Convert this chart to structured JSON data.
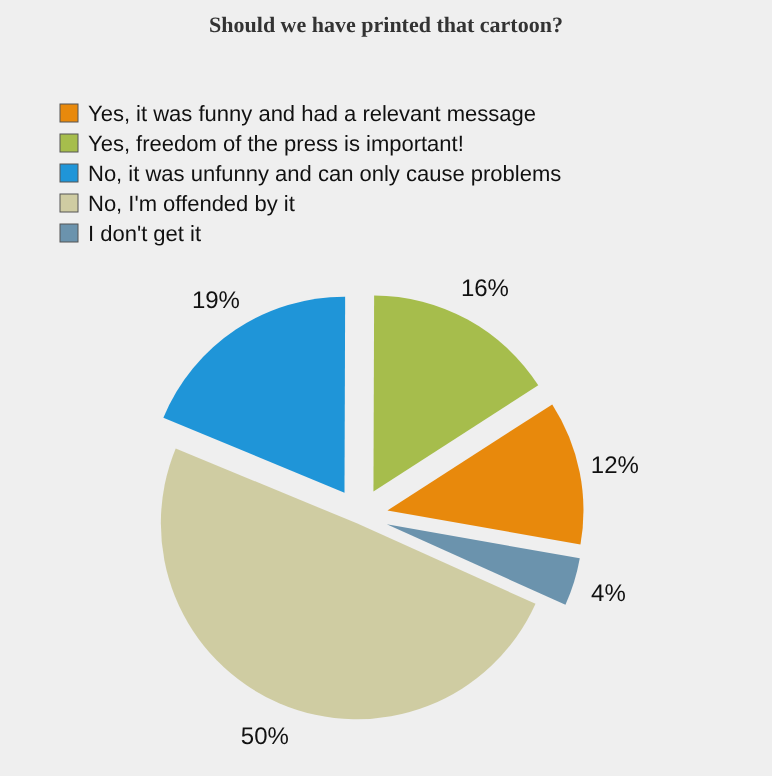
{
  "chart_data": {
    "type": "pie",
    "title": "Should we have printed that cartoon?",
    "categories": [
      "Yes, it was funny and had a relevant message",
      "Yes, freedom of the press is important!",
      "No, it was unfunny and can only cause problems",
      "No, I'm offended by it",
      "I don't get it"
    ],
    "values": [
      12,
      16,
      19,
      50,
      4
    ],
    "colors": [
      "#e8890c",
      "#a6bd4c",
      "#1f95d8",
      "#cfcca2",
      "#6b93ad"
    ],
    "value_labels": [
      "12%",
      "16%",
      "19%",
      "50%",
      "4%"
    ],
    "legend": "top left"
  }
}
